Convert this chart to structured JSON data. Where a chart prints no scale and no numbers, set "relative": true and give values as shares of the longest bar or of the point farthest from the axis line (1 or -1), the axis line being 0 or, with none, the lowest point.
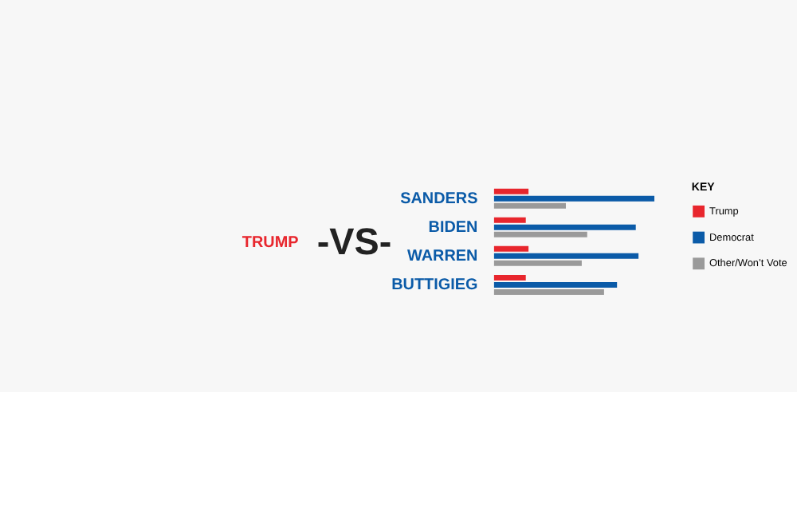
{
  "chart_data": {
    "type": "bar",
    "orientation": "horizontal",
    "relative": true,
    "legend": "right",
    "legend_title": "KEY",
    "categories": [
      "SANDERS",
      "BIDEN",
      "WARREN",
      "BUTTIGIEG"
    ],
    "series": [
      {
        "name": "Trump",
        "color": "#e8262d",
        "values": [
          0.215,
          0.198,
          0.215,
          0.198
        ]
      },
      {
        "name": "Democrat",
        "color": "#0b5ba8",
        "values": [
          1,
          0.884,
          0.901,
          0.767
        ]
      },
      {
        "name": "Other/Won’t Vote",
        "color": "#9a9a9a",
        "values": [
          0.448,
          0.581,
          0.547,
          0.686
        ]
      }
    ],
    "annotations": [
      "TRUMP",
      "-VS-"
    ]
  }
}
